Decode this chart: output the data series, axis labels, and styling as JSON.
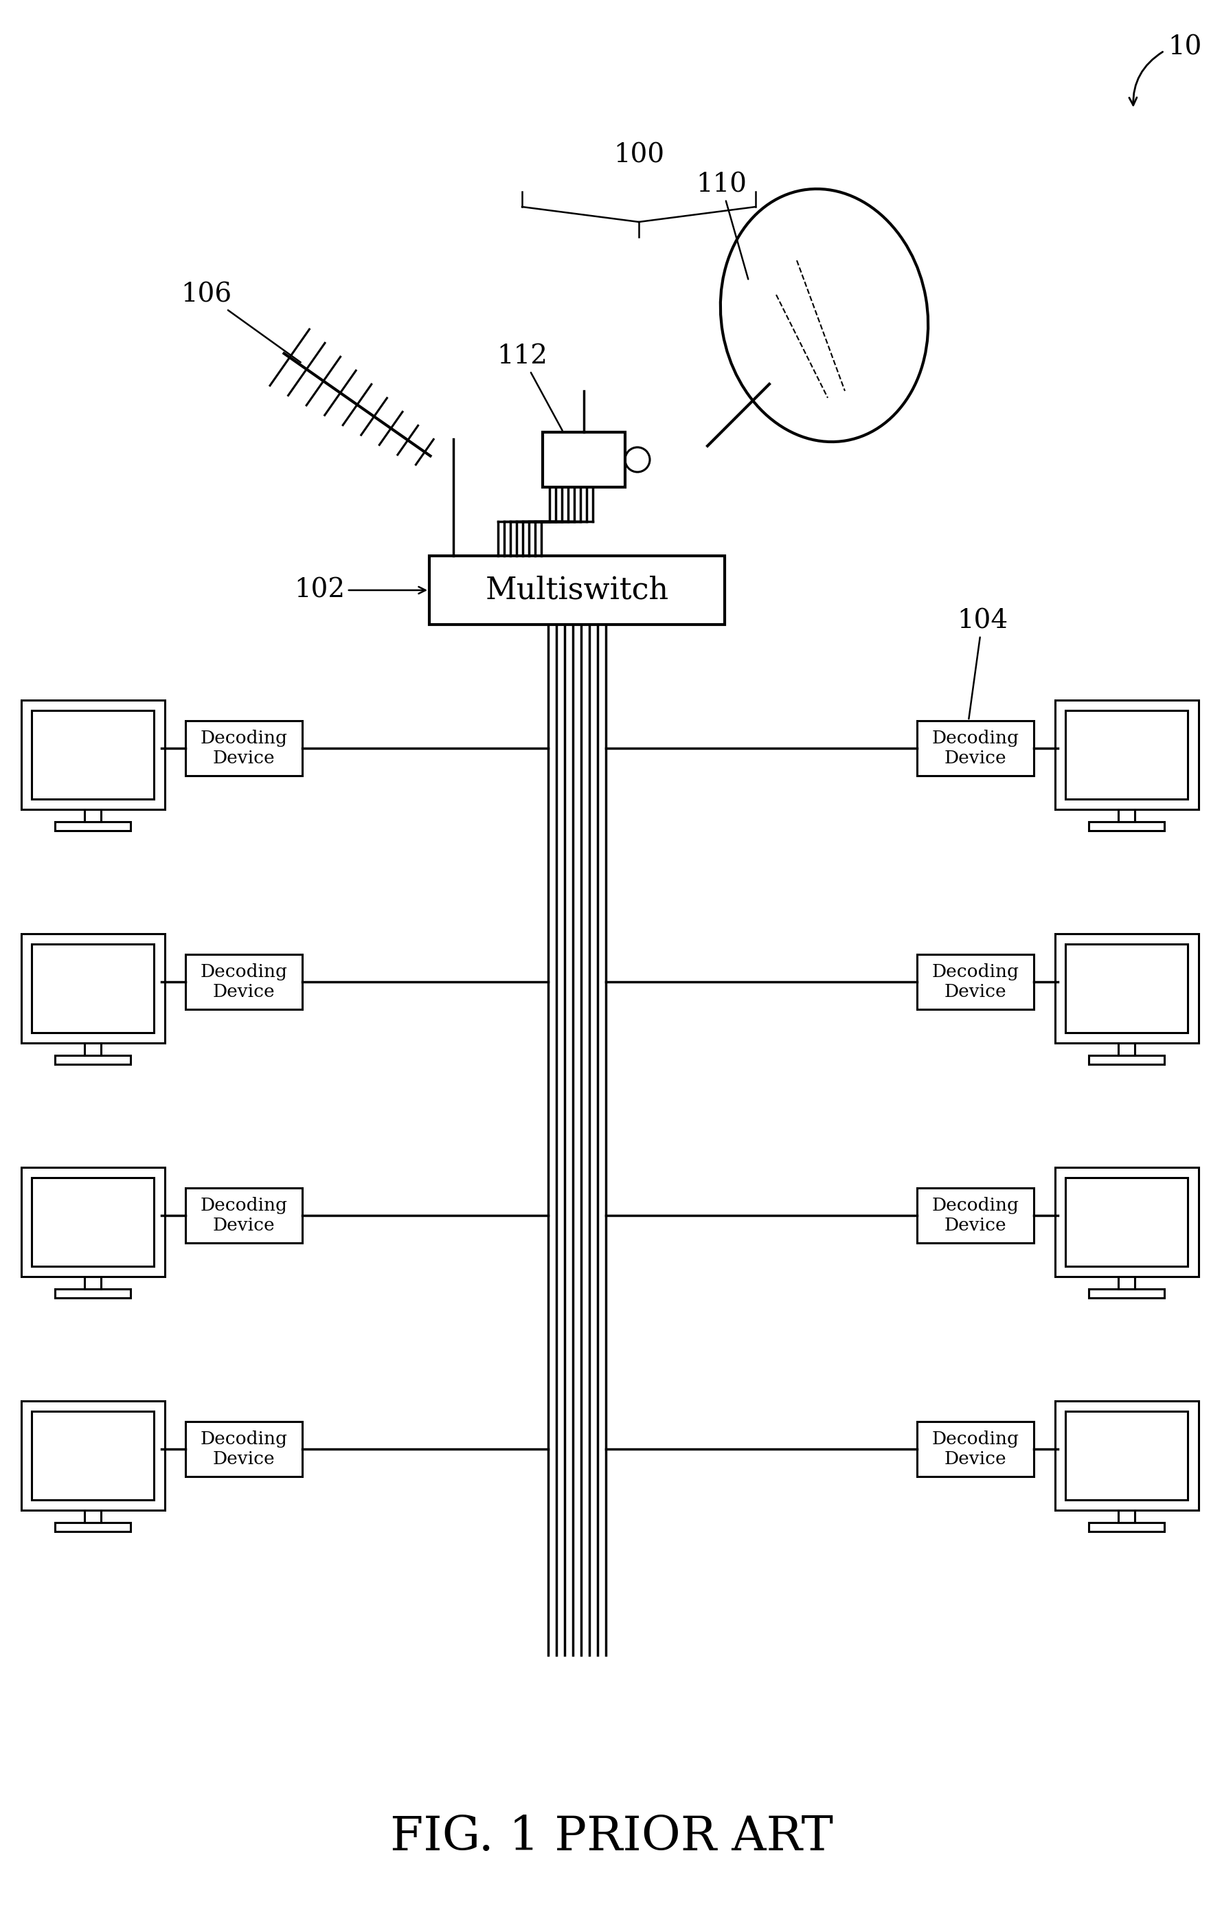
{
  "fig_label": "FIG. 1 PRIOR ART",
  "bg_color": "#ffffff",
  "line_color": "#000000",
  "labels": {
    "fig_num": "10",
    "lnb_group": "100",
    "lnb_body": "112",
    "dish": "110",
    "multiswitch_label": "102",
    "multiswitch_text": "Multiswitch",
    "antenna_label": "106",
    "decoding_label": "104"
  },
  "decoding_text": "Decoding\nDevice",
  "num_rows": 4,
  "wire_count": 8,
  "lw_main": 2.2,
  "lw_wire": 2.5,
  "lw_thick": 3.0
}
